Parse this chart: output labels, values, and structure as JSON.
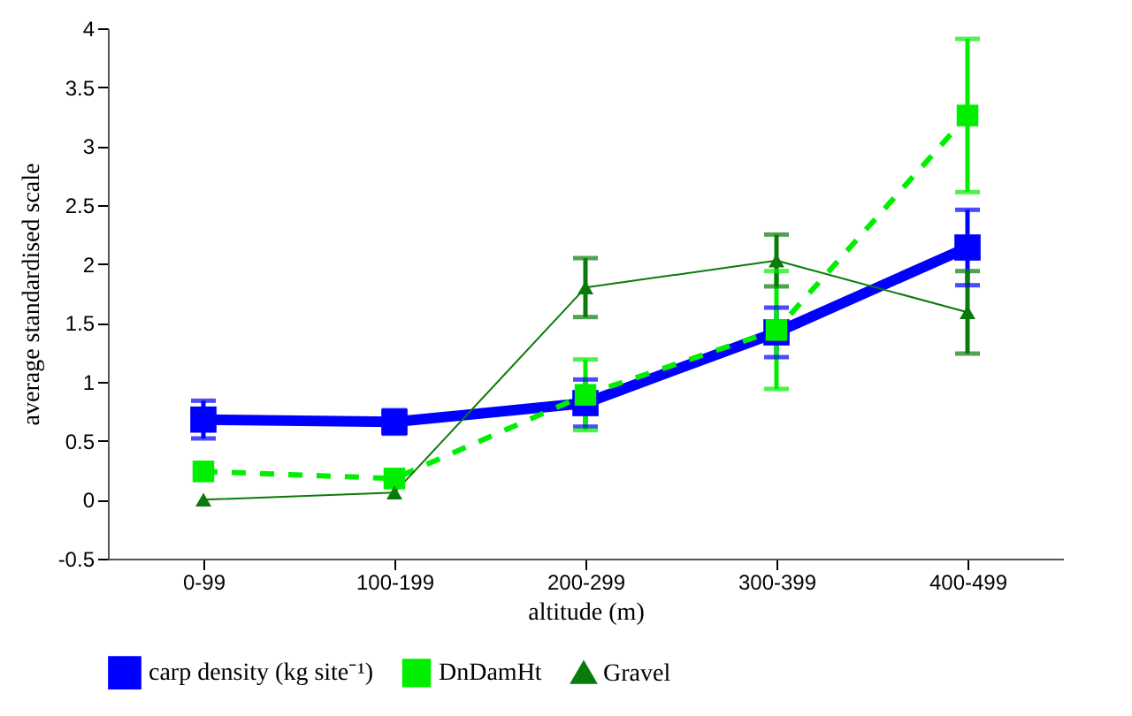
{
  "chart_data": {
    "type": "line",
    "xlabel": "altitude (m)",
    "ylabel": "average standardised scale",
    "categories": [
      "0-99",
      "100-199",
      "200-299",
      "300-399",
      "400-499"
    ],
    "ylim": [
      -0.5,
      4
    ],
    "yticks": [
      -0.5,
      0,
      0.5,
      1,
      1.5,
      2,
      2.5,
      3,
      3.5,
      4
    ],
    "grid": false,
    "legend": "bottom",
    "series": [
      {
        "name": "carp density (kg site⁻¹)",
        "color": "#0000ff",
        "marker": "square",
        "line_style": "solid",
        "values": [
          0.68,
          0.66,
          0.82,
          1.42,
          2.14
        ],
        "errors": [
          0.16,
          0.1,
          0.2,
          0.21,
          0.32
        ]
      },
      {
        "name": "DnDamHt",
        "color": "#00ee00",
        "marker": "square",
        "line_style": "dashed",
        "values": [
          0.24,
          0.18,
          0.89,
          1.44,
          3.26
        ],
        "errors": [
          null,
          null,
          0.3,
          0.5,
          0.65
        ]
      },
      {
        "name": "Gravel",
        "color": "#0a7a0a",
        "marker": "triangle",
        "line_style": "solid",
        "values": [
          0.0,
          0.06,
          1.8,
          2.03,
          1.59
        ],
        "errors": [
          null,
          null,
          0.25,
          0.22,
          0.35
        ]
      }
    ]
  }
}
